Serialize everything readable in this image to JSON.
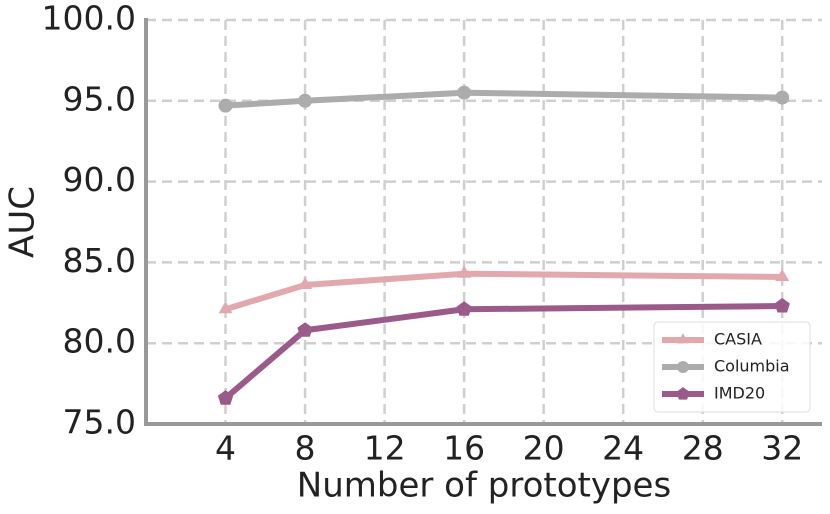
{
  "chart_data": {
    "type": "line",
    "xlabel": "Number of prototypes",
    "ylabel": "AUC",
    "x": [
      4,
      8,
      16,
      32
    ],
    "series": [
      {
        "name": "CASIA",
        "color": "#e1a9ad",
        "marker": "triangle",
        "values": [
          82.1,
          83.6,
          84.3,
          84.1
        ]
      },
      {
        "name": "Columbia",
        "color": "#acacac",
        "marker": "circle",
        "values": [
          94.7,
          95.0,
          95.5,
          95.2
        ]
      },
      {
        "name": "IMD20",
        "color": "#9a5a8a",
        "marker": "pentagon",
        "values": [
          76.6,
          80.8,
          82.1,
          82.3
        ]
      }
    ],
    "xlim": [
      0,
      34
    ],
    "xticks": [
      4,
      8,
      12,
      16,
      20,
      24,
      28,
      32
    ],
    "ylim": [
      75,
      100
    ],
    "yticks": [
      {
        "value": 75,
        "label": "75.0"
      },
      {
        "value": 80,
        "label": "80.0"
      },
      {
        "value": 85,
        "label": "85.0"
      },
      {
        "value": 90,
        "label": "90.0"
      },
      {
        "value": 95,
        "label": "95.0"
      },
      {
        "value": 100,
        "label": "100.0"
      }
    ],
    "grid": true,
    "legend": "lower right"
  }
}
